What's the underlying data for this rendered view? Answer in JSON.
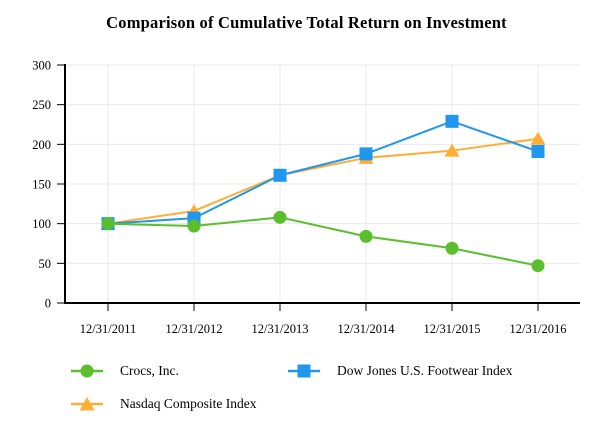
{
  "title": "Comparison of Cumulative Total Return on Investment",
  "chart_data": {
    "type": "line",
    "x_labels": [
      "12/31/2011",
      "12/31/2012",
      "12/31/2013",
      "12/31/2014",
      "12/31/2015",
      "12/31/2016"
    ],
    "series": [
      {
        "name": "Crocs, Inc.",
        "marker": "circle",
        "color": "#5ABE2D",
        "values": [
          100,
          97,
          108,
          84,
          69,
          47
        ]
      },
      {
        "name": "Dow Jones U.S. Footwear Index",
        "marker": "square",
        "color": "#1F97EE",
        "values": [
          100,
          107,
          161,
          188,
          229,
          191
        ]
      },
      {
        "name": "Nasdaq Composite Index",
        "marker": "triangle",
        "color": "#FFAD33",
        "values": [
          100,
          116,
          161,
          183,
          192,
          207
        ]
      }
    ],
    "ylim": [
      0,
      300
    ],
    "yticks": [
      0,
      50,
      100,
      150,
      200,
      250,
      300
    ],
    "grid": true,
    "legend_position": "bottom"
  },
  "colors": {
    "axis": "#000000",
    "gridline": "#E9E9E9",
    "background": "#FFFFFF",
    "text": "#000000"
  }
}
